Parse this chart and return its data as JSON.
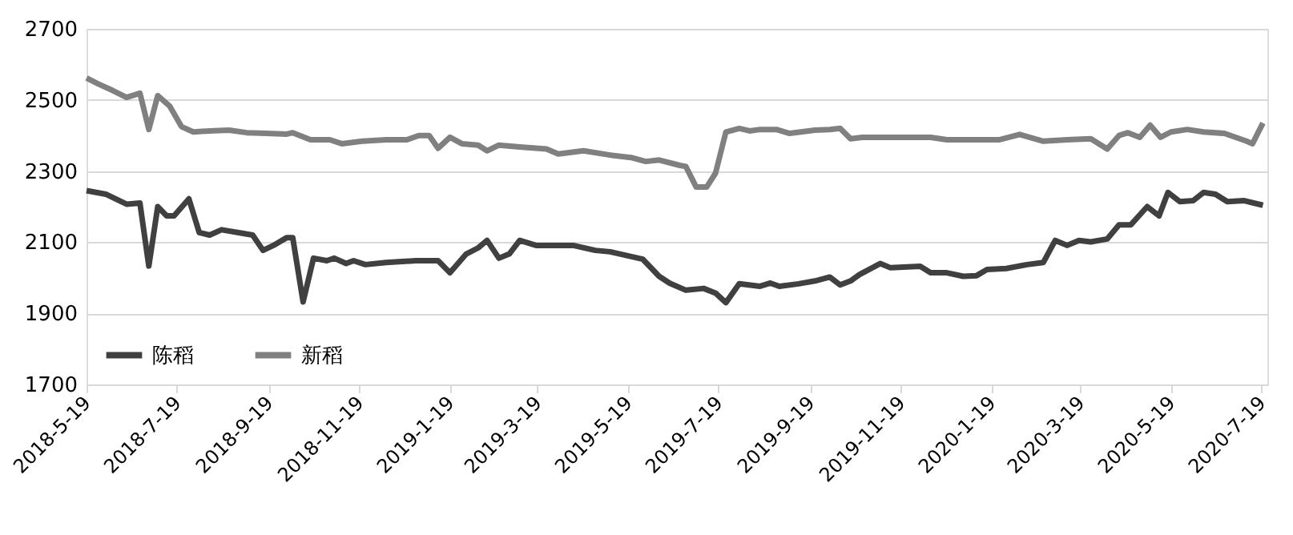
{
  "chart_data": {
    "type": "line",
    "xlim": [
      "2018-05-19",
      "2020-07-23"
    ],
    "xticks": [
      {
        "value": "2018-05-19",
        "label": "2018-5-19"
      },
      {
        "value": "2018-07-19",
        "label": "2018-7-19"
      },
      {
        "value": "2018-09-19",
        "label": "2018-9-19"
      },
      {
        "value": "2018-11-19",
        "label": "2018-11-19"
      },
      {
        "value": "2019-01-19",
        "label": "2019-1-19"
      },
      {
        "value": "2019-03-19",
        "label": "2019-3-19"
      },
      {
        "value": "2019-05-19",
        "label": "2019-5-19"
      },
      {
        "value": "2019-07-19",
        "label": "2019-7-19"
      },
      {
        "value": "2019-09-19",
        "label": "2019-9-19"
      },
      {
        "value": "2019-11-19",
        "label": "2019-11-19"
      },
      {
        "value": "2020-01-19",
        "label": "2020-1-19"
      },
      {
        "value": "2020-03-19",
        "label": "2020-3-19"
      },
      {
        "value": "2020-05-19",
        "label": "2020-5-19"
      },
      {
        "value": "2020-07-19",
        "label": "2020-7-19"
      }
    ],
    "ylim": [
      1700,
      2700
    ],
    "yticks": [
      1700,
      1900,
      2100,
      2300,
      2500,
      2700
    ],
    "grid": "y",
    "legend": "bottom left",
    "line_style": "solid",
    "marker": "none",
    "series": [
      {
        "name": "陈稻",
        "color": "#404040",
        "x": [
          "2018-05-19",
          "2018-06-01",
          "2018-06-15",
          "2018-06-24",
          "2018-06-30",
          "2018-07-06",
          "2018-07-12",
          "2018-07-17",
          "2018-07-27",
          "2018-08-03",
          "2018-08-10",
          "2018-08-18",
          "2018-09-01",
          "2018-09-08",
          "2018-09-15",
          "2018-09-22",
          "2018-10-01",
          "2018-10-05",
          "2018-10-12",
          "2018-10-19",
          "2018-10-28",
          "2018-11-02",
          "2018-11-10",
          "2018-11-15",
          "2018-11-23",
          "2018-12-07",
          "2018-12-27",
          "2019-01-11",
          "2019-01-19",
          "2019-01-30",
          "2019-02-07",
          "2019-02-13",
          "2019-02-21",
          "2019-02-28",
          "2019-03-07",
          "2019-03-18",
          "2019-04-12",
          "2019-04-27",
          "2019-05-07",
          "2019-05-29",
          "2019-06-09",
          "2019-06-16",
          "2019-06-27",
          "2019-07-09",
          "2019-07-17",
          "2019-07-24",
          "2019-08-02",
          "2019-08-16",
          "2019-08-23",
          "2019-08-29",
          "2019-09-11",
          "2019-09-22",
          "2019-10-02",
          "2019-10-09",
          "2019-10-16",
          "2019-10-22",
          "2019-11-05",
          "2019-11-12",
          "2019-12-02",
          "2019-12-09",
          "2019-12-20",
          "2019-12-31",
          "2020-01-09",
          "2020-01-16",
          "2020-01-29",
          "2020-02-12",
          "2020-02-23",
          "2020-03-02",
          "2020-03-10",
          "2020-03-18",
          "2020-03-26",
          "2020-04-06",
          "2020-04-14",
          "2020-04-22",
          "2020-05-03",
          "2020-05-11",
          "2020-05-17",
          "2020-05-25",
          "2020-06-03",
          "2020-06-10",
          "2020-06-18",
          "2020-06-26",
          "2020-07-07",
          "2020-07-20"
        ],
        "values": [
          2245,
          2235,
          2207,
          2210,
          2033,
          2200,
          2174,
          2174,
          2222,
          2127,
          2120,
          2135,
          2125,
          2120,
          2077,
          2091,
          2113,
          2113,
          1932,
          2055,
          2048,
          2055,
          2040,
          2048,
          2037,
          2043,
          2048,
          2048,
          2014,
          2067,
          2084,
          2105,
          2055,
          2067,
          2105,
          2091,
          2091,
          2077,
          2073,
          2052,
          2004,
          1985,
          1965,
          1970,
          1957,
          1930,
          1983,
          1976,
          1985,
          1976,
          1983,
          1991,
          2002,
          1980,
          1991,
          2009,
          2040,
          2028,
          2032,
          2014,
          2014,
          2004,
          2006,
          2023,
          2026,
          2037,
          2043,
          2105,
          2091,
          2105,
          2101,
          2109,
          2149,
          2149,
          2200,
          2174,
          2240,
          2214,
          2217,
          2240,
          2235,
          2214,
          2217,
          2204
        ]
      },
      {
        "name": "新稻",
        "color": "#808080",
        "x": [
          "2018-05-19",
          "2018-05-27",
          "2018-06-06",
          "2018-06-15",
          "2018-06-24",
          "2018-06-30",
          "2018-07-06",
          "2018-07-14",
          "2018-07-22",
          "2018-07-30",
          "2018-08-10",
          "2018-08-23",
          "2018-09-04",
          "2018-09-17",
          "2018-10-01",
          "2018-10-05",
          "2018-10-17",
          "2018-10-30",
          "2018-11-07",
          "2018-11-21",
          "2018-12-07",
          "2018-12-21",
          "2018-12-29",
          "2019-01-05",
          "2019-01-11",
          "2019-01-19",
          "2019-01-27",
          "2019-02-07",
          "2019-02-13",
          "2019-02-21",
          "2019-03-07",
          "2019-03-25",
          "2019-04-02",
          "2019-04-19",
          "2019-05-07",
          "2019-05-21",
          "2019-05-31",
          "2019-06-09",
          "2019-06-23",
          "2019-06-27",
          "2019-07-04",
          "2019-07-11",
          "2019-07-17",
          "2019-07-24",
          "2019-08-02",
          "2019-08-09",
          "2019-08-16",
          "2019-08-27",
          "2019-09-05",
          "2019-09-22",
          "2019-10-02",
          "2019-10-09",
          "2019-10-16",
          "2019-10-24",
          "2019-12-09",
          "2019-12-20",
          "2020-01-11",
          "2020-01-24",
          "2020-02-07",
          "2020-02-23",
          "2020-03-10",
          "2020-03-26",
          "2020-04-06",
          "2020-04-14",
          "2020-04-20",
          "2020-04-28",
          "2020-05-05",
          "2020-05-12",
          "2020-05-19",
          "2020-05-30",
          "2020-06-10",
          "2020-06-24",
          "2020-07-09",
          "2020-07-13",
          "2020-07-20"
        ],
        "values": [
          2562,
          2545,
          2526,
          2507,
          2519,
          2417,
          2512,
          2483,
          2425,
          2410,
          2413,
          2415,
          2408,
          2406,
          2404,
          2408,
          2388,
          2388,
          2377,
          2384,
          2388,
          2388,
          2400,
          2400,
          2364,
          2395,
          2377,
          2373,
          2357,
          2373,
          2368,
          2362,
          2348,
          2357,
          2345,
          2338,
          2327,
          2331,
          2316,
          2313,
          2255,
          2255,
          2294,
          2410,
          2420,
          2413,
          2417,
          2417,
          2406,
          2415,
          2417,
          2420,
          2391,
          2395,
          2395,
          2388,
          2388,
          2388,
          2403,
          2384,
          2388,
          2391,
          2362,
          2400,
          2408,
          2395,
          2429,
          2395,
          2410,
          2417,
          2410,
          2406,
          2384,
          2377,
          2435
        ]
      }
    ]
  }
}
